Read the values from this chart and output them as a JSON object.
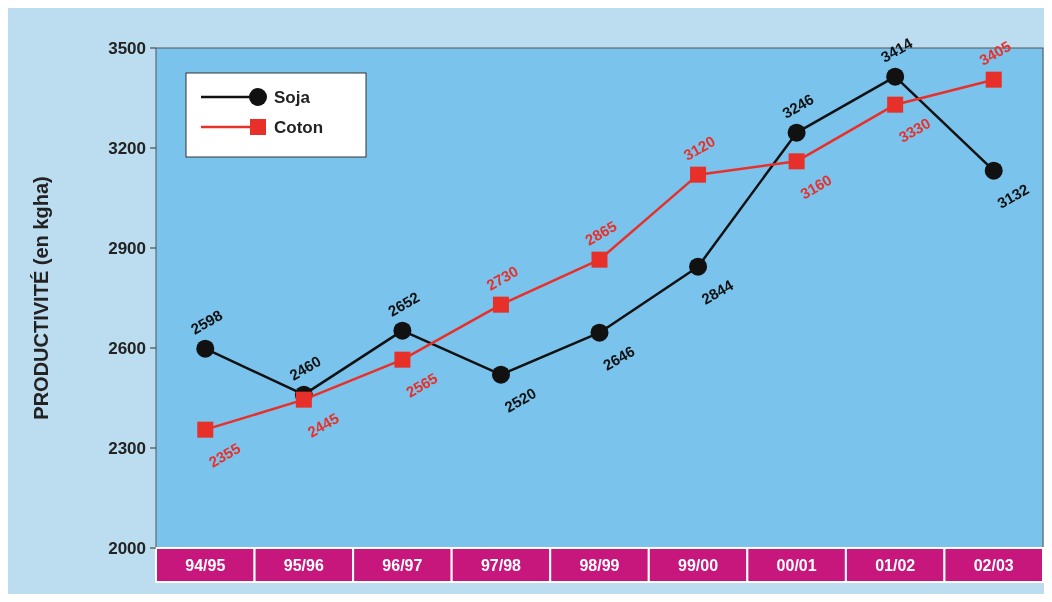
{
  "chart_data": {
    "type": "line",
    "ylabel": "PRODUCTIVITÉ (en kgha)",
    "categories": [
      "94/95",
      "95/96",
      "96/97",
      "97/98",
      "98/99",
      "99/00",
      "00/01",
      "01/02",
      "02/03"
    ],
    "series": [
      {
        "name": "Soja",
        "color": "#111111",
        "marker": "circle",
        "values": [
          2598,
          2460,
          2652,
          2520,
          2646,
          2844,
          3246,
          3414,
          3132
        ]
      },
      {
        "name": "Coton",
        "color": "#e8302a",
        "marker": "square",
        "values": [
          2355,
          2445,
          2565,
          2730,
          2865,
          3120,
          3160,
          3330,
          3405
        ]
      }
    ],
    "ylim": [
      2000,
      3500
    ],
    "yticks": [
      2000,
      2300,
      2600,
      2900,
      3200,
      3500
    ],
    "data_labels": true,
    "legend": "top left",
    "grid": false
  }
}
